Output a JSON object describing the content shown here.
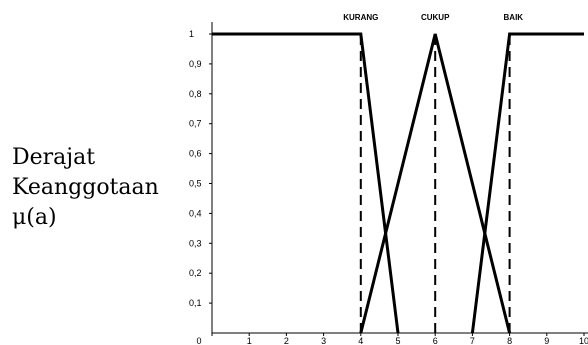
{
  "chart_data": {
    "type": "line",
    "title": "",
    "xlabel": "",
    "ylabel_lines": [
      "Derajat",
      "Keanggotaan",
      "μ(a)"
    ],
    "xlim": [
      0,
      10
    ],
    "ylim": [
      0,
      1
    ],
    "x_ticks": [
      0,
      1,
      2,
      3,
      4,
      5,
      6,
      7,
      8,
      9,
      10
    ],
    "x_tick_labels": [
      "0",
      "1",
      "2",
      "3",
      "4",
      "5",
      "6",
      "7",
      "8",
      "9",
      "10"
    ],
    "y_ticks": [
      0.1,
      0.2,
      0.3,
      0.4,
      0.5,
      0.6,
      0.7,
      0.8,
      0.9,
      1
    ],
    "y_tick_labels": [
      "0,1",
      "0,2",
      "0,3",
      "0,4",
      "0,5",
      "0,6",
      "0,7",
      "0,8",
      "0,9",
      "1"
    ],
    "grid": false,
    "legend": false,
    "series": [
      {
        "name": "KURANG",
        "x": [
          0,
          4,
          5
        ],
        "y": [
          1,
          1,
          0
        ]
      },
      {
        "name": "CUKUP",
        "x": [
          4,
          6,
          8
        ],
        "y": [
          0,
          1,
          0
        ]
      },
      {
        "name": "BAIK",
        "x": [
          7,
          8,
          10
        ],
        "y": [
          0,
          1,
          1
        ]
      }
    ],
    "dashed_verticals": [
      4,
      6,
      8
    ],
    "colors": {
      "line": "#000000",
      "axis": "#000000"
    }
  }
}
